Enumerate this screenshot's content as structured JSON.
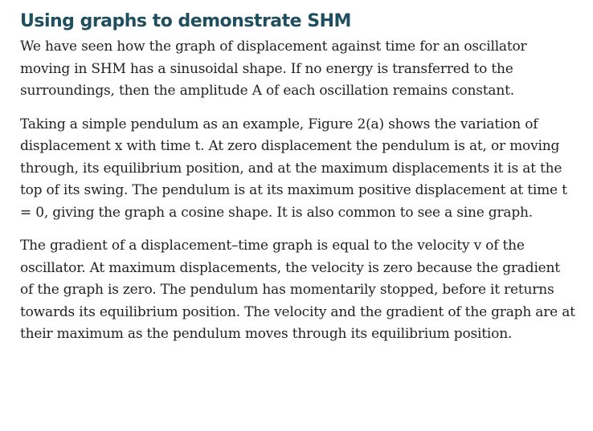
{
  "heading": "Using graphs to demonstrate SHM",
  "paragraphs": [
    "We have seen how the graph of displacement against time for an oscillator moving in SHM has a sinusoidal shape. If no energy is transferred to the surroundings, then the amplitude A of each oscillation remains constant.",
    "Taking a simple pendulum as an example, Figure 2(a) shows the variation of displacement x with time t. At zero displacement the pendulum is at, or moving through, its equilibrium position, and at the maximum displacements it is at the top of its swing. The pendulum is at its maximum positive displacement at time t = 0, giving the graph a cosine shape. It is also common to see a sine graph.",
    "The gradient of a displacement–time graph is equal to the velocity v of the oscillator. At maximum displacements, the velocity is zero because the gradient of the graph is zero. The pendulum has momentarily stopped, before it returns towards its equilibrium position. The velocity and the gradient of the graph are at their maximum as the pendulum moves through its equilibrium position."
  ]
}
